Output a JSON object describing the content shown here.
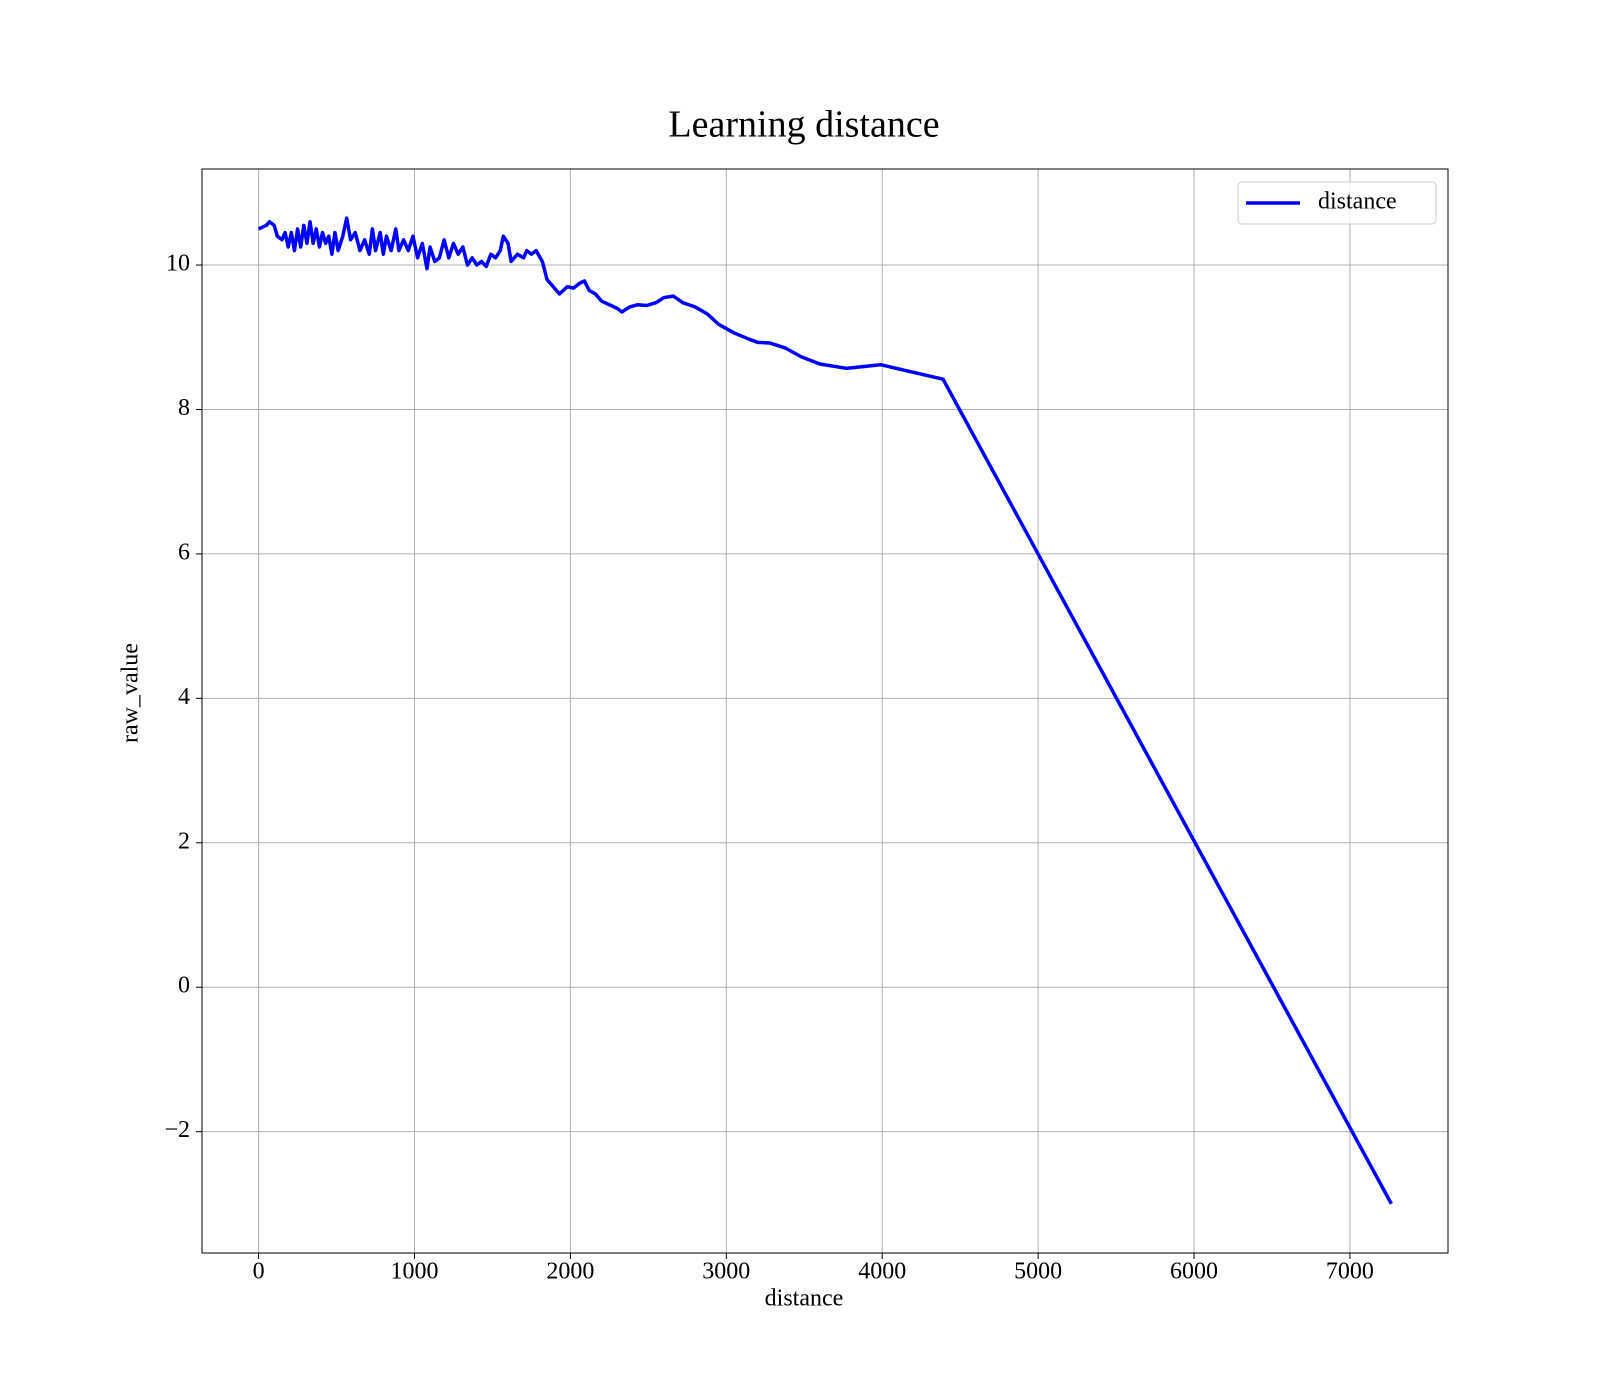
{
  "chart_data": {
    "type": "line",
    "title": "Learning distance",
    "xlabel": "distance",
    "ylabel": "raw_value",
    "x": [
      0,
      50,
      70,
      100,
      120,
      150,
      170,
      190,
      210,
      230,
      250,
      270,
      290,
      310,
      330,
      350,
      370,
      390,
      410,
      430,
      450,
      470,
      490,
      510,
      540,
      565,
      590,
      620,
      650,
      680,
      710,
      730,
      750,
      780,
      800,
      820,
      850,
      880,
      900,
      930,
      960,
      990,
      1020,
      1050,
      1080,
      1100,
      1130,
      1160,
      1190,
      1220,
      1250,
      1280,
      1310,
      1340,
      1370,
      1400,
      1430,
      1460,
      1490,
      1520,
      1550,
      1570,
      1600,
      1620,
      1660,
      1700,
      1720,
      1750,
      1780,
      1820,
      1850,
      1890,
      1930,
      1980,
      2020,
      2060,
      2090,
      2120,
      2160,
      2200,
      2250,
      2300,
      2330,
      2380,
      2430,
      2490,
      2550,
      2600,
      2660,
      2720,
      2800,
      2880,
      2950,
      3050,
      3150,
      3200,
      3280,
      3380,
      3480,
      3600,
      3770,
      3990,
      4390,
      7266
    ],
    "series": [
      {
        "name": "distance",
        "color": "#0000ff",
        "values": [
          10.5,
          10.55,
          10.6,
          10.55,
          10.4,
          10.35,
          10.45,
          10.25,
          10.45,
          10.2,
          10.5,
          10.25,
          10.55,
          10.3,
          10.6,
          10.3,
          10.5,
          10.25,
          10.45,
          10.3,
          10.4,
          10.15,
          10.45,
          10.2,
          10.4,
          10.65,
          10.35,
          10.45,
          10.2,
          10.35,
          10.15,
          10.5,
          10.2,
          10.45,
          10.15,
          10.4,
          10.2,
          10.5,
          10.2,
          10.35,
          10.2,
          10.4,
          10.1,
          10.3,
          9.95,
          10.25,
          10.05,
          10.1,
          10.35,
          10.1,
          10.3,
          10.15,
          10.25,
          10.0,
          10.1,
          10.0,
          10.05,
          9.98,
          10.15,
          10.1,
          10.2,
          10.4,
          10.3,
          10.05,
          10.15,
          10.1,
          10.2,
          10.15,
          10.2,
          10.05,
          9.8,
          9.7,
          9.6,
          9.7,
          9.68,
          9.75,
          9.78,
          9.65,
          9.6,
          9.5,
          9.45,
          9.4,
          9.35,
          9.42,
          9.45,
          9.44,
          9.48,
          9.55,
          9.57,
          9.48,
          9.42,
          9.32,
          9.18,
          9.06,
          8.97,
          8.93,
          8.92,
          8.85,
          8.73,
          8.63,
          8.57,
          8.62,
          8.42,
          -3.0
        ]
      }
    ],
    "xlim": [
      -363,
      7629
    ],
    "ylim": [
      -3.68,
      11.33
    ],
    "xticks": [
      0,
      1000,
      2000,
      3000,
      4000,
      5000,
      6000,
      7000
    ],
    "yticks": [
      {
        "value": -2,
        "label": "−2"
      },
      0,
      2,
      4,
      6,
      8,
      10
    ],
    "grid": true,
    "legend": "upper right"
  }
}
